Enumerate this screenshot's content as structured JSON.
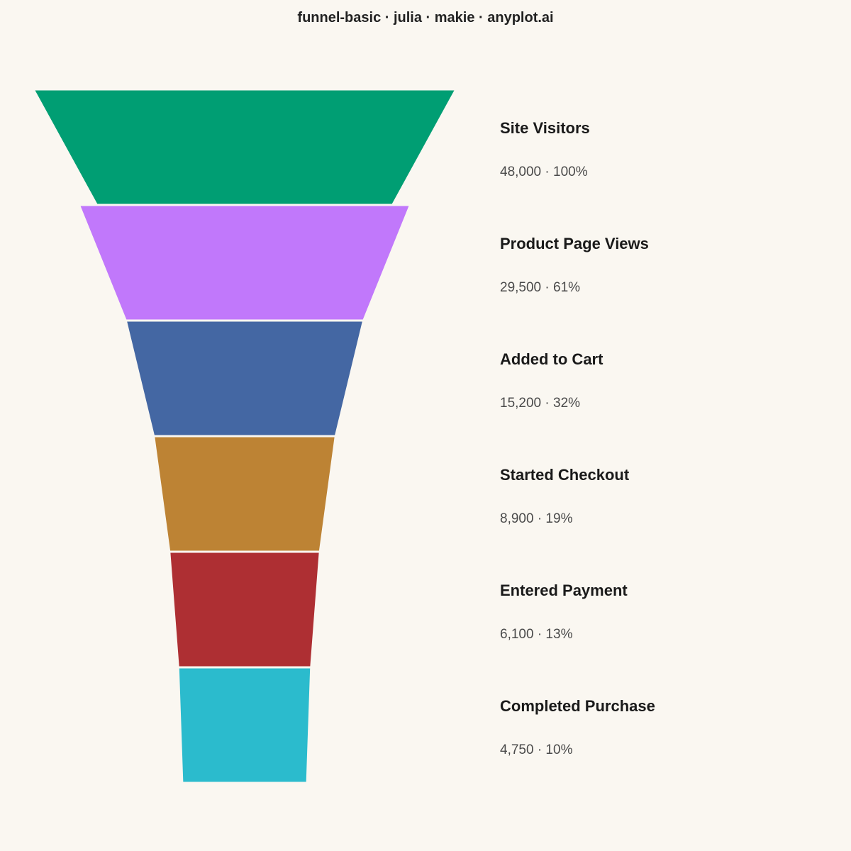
{
  "title": "funnel-basic · julia · makie · anyplot.ai",
  "chart_data": {
    "type": "funnel",
    "categories": [
      "Site Visitors",
      "Product Page Views",
      "Added to Cart",
      "Started Checkout",
      "Entered Payment",
      "Completed Purchase"
    ],
    "values": [
      48000,
      29500,
      15200,
      8900,
      6100,
      4750
    ],
    "percent_of_first": [
      100,
      61,
      32,
      19,
      13,
      10
    ],
    "value_labels": [
      "48,000 · 100%",
      "29,500 · 61%",
      "15,200 · 32%",
      "8,900 · 19%",
      "6,100 · 13%",
      "4,750 · 10%"
    ],
    "colors": [
      "#009E73",
      "#C178FB",
      "#4467A3",
      "#BD8334",
      "#AE2F33",
      "#2BBBCD"
    ],
    "edge_color": "#FAF7F1"
  }
}
